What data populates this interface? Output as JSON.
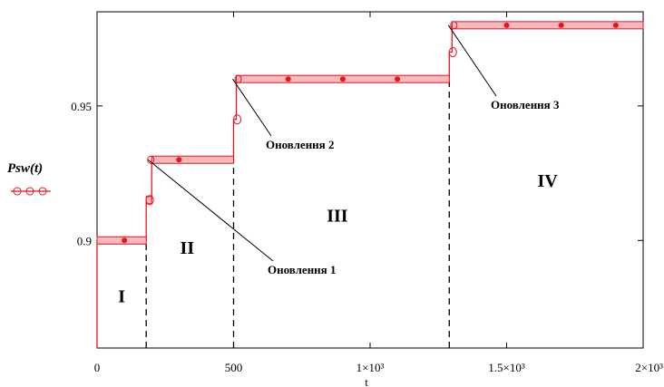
{
  "chart_data": {
    "type": "line",
    "ylabel": "Psw(t)",
    "xlim": [
      0,
      2000
    ],
    "ylim": [
      0.86,
      0.985
    ],
    "x_ticks": [
      {
        "value": 0,
        "label": "0"
      },
      {
        "value": 500,
        "label": "500"
      },
      {
        "value": 1000,
        "label": "1×10³"
      },
      {
        "value": 1500,
        "label": "1.5×10³"
      },
      {
        "value": 2000,
        "label": "2×10³"
      }
    ],
    "x_axis_mark": "t",
    "y_ticks": [
      {
        "value": 0.9,
        "label": "0.9"
      },
      {
        "value": 0.95,
        "label": "0.95"
      }
    ],
    "grid": false,
    "series": [
      {
        "name": "Psw(t)",
        "color": "#e8141e",
        "marker": "circle",
        "x": [
          0,
          0,
          180,
          180,
          200,
          200,
          500,
          500,
          510,
          510,
          1290,
          1290,
          1300,
          1300,
          2000
        ],
        "values": [
          0.86,
          0.9,
          0.9,
          0.915,
          0.915,
          0.93,
          0.93,
          0.945,
          0.945,
          0.96,
          0.96,
          0.97,
          0.97,
          0.98,
          0.98
        ]
      }
    ],
    "dashed_dividers": [
      180,
      500,
      1290
    ],
    "annotations": [
      {
        "text": "Оновлення 1",
        "x": 200,
        "y": 0.93
      },
      {
        "text": "Оновлення 2",
        "x": 510,
        "y": 0.96
      },
      {
        "text": "Оновлення 3",
        "x": 1300,
        "y": 0.98
      }
    ],
    "regions": [
      {
        "label": "I",
        "x": 90,
        "y": 0.877
      },
      {
        "label": "II",
        "x": 330,
        "y": 0.895
      },
      {
        "label": "III",
        "x": 880,
        "y": 0.907
      },
      {
        "label": "IV",
        "x": 1650,
        "y": 0.92
      }
    ]
  }
}
